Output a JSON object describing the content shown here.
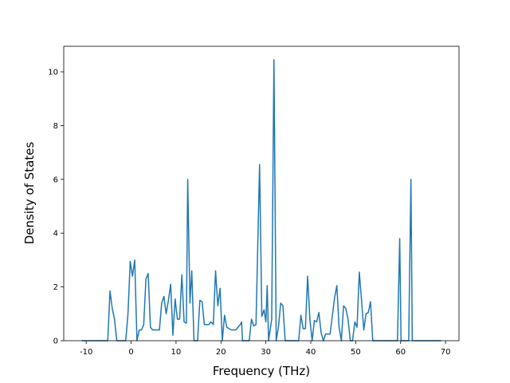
{
  "chart_data": {
    "type": "line",
    "xlabel": "Frequency (THz)",
    "ylabel": "Density of States",
    "x": [
      -11,
      -5.2,
      -4.7,
      -4.2,
      -3.7,
      -3.2,
      -1.2,
      -0.7,
      -0.2,
      0.3,
      0.8,
      1.3,
      1.8,
      2.3,
      2.8,
      3.3,
      3.8,
      4.3,
      4.8,
      5.3,
      6.3,
      6.8,
      7.3,
      7.8,
      8.3,
      8.8,
      9.3,
      9.8,
      10.3,
      10.8,
      11.3,
      11.8,
      12.3,
      12.6,
      13.1,
      13.5,
      14.0,
      14.8,
      15.3,
      15.8,
      16.3,
      17.3,
      17.8,
      18.3,
      18.8,
      19.3,
      19.8,
      20.3,
      20.8,
      21.3,
      22.3,
      23.3,
      24.3,
      24.6,
      24.8,
      26.3,
      26.8,
      27.3,
      27.8,
      28.6,
      29.1,
      29.6,
      30.0,
      30.3,
      30.6,
      31.3,
      31.8,
      32.3,
      32.8,
      33.3,
      33.8,
      34.3,
      37.3,
      37.8,
      38.3,
      38.8,
      39.3,
      39.8,
      40.3,
      40.8,
      41.3,
      41.8,
      42.3,
      42.8,
      43.3,
      44.3,
      45.3,
      45.8,
      46.3,
      46.8,
      47.3,
      47.8,
      48.3,
      48.8,
      49.3,
      49.8,
      50.3,
      50.8,
      51.3,
      51.8,
      52.3,
      52.8,
      53.3,
      53.8,
      59.3,
      59.8,
      60.1,
      61.8,
      62.3,
      62.6,
      69
    ],
    "values": [
      0,
      0,
      1.85,
      1.2,
      0.8,
      0,
      0,
      1,
      2.95,
      2.4,
      3.0,
      0,
      0.4,
      0.4,
      0.6,
      2.3,
      2.5,
      0.5,
      0.4,
      0.4,
      0.4,
      1.4,
      1.65,
      1.0,
      1.5,
      2.1,
      0.2,
      1.55,
      0.8,
      0.8,
      2.45,
      0.7,
      0.65,
      6.0,
      1.4,
      2.6,
      0,
      0,
      1.5,
      1.45,
      0.6,
      0.6,
      0.7,
      0.6,
      2.6,
      1.3,
      1.95,
      0,
      0.95,
      0.5,
      0.4,
      0.4,
      0.6,
      0.7,
      0,
      0,
      0.8,
      0.55,
      0.6,
      6.55,
      0.9,
      1.15,
      0.7,
      2.05,
      0,
      0.8,
      10.45,
      0,
      0.5,
      1.4,
      1.3,
      0,
      0,
      0.95,
      0.45,
      0.45,
      2.4,
      0.8,
      0,
      0.75,
      0.7,
      1.05,
      0.3,
      0,
      0.25,
      0.25,
      1.6,
      2.05,
      0.5,
      0,
      1.3,
      1.2,
      0.8,
      0,
      0,
      0.7,
      0.5,
      2.55,
      1.5,
      0.4,
      1.0,
      1.05,
      1.45,
      0,
      0,
      3.8,
      0,
      0,
      6.0,
      0,
      0
    ],
    "color": "#1f77b4",
    "xlim": [
      -15,
      73
    ],
    "xticks": [
      -10,
      0,
      10,
      20,
      30,
      40,
      50,
      60,
      70
    ],
    "ylim": [
      0,
      10.95
    ],
    "yticks": [
      0,
      2,
      4,
      6,
      8,
      10
    ]
  }
}
